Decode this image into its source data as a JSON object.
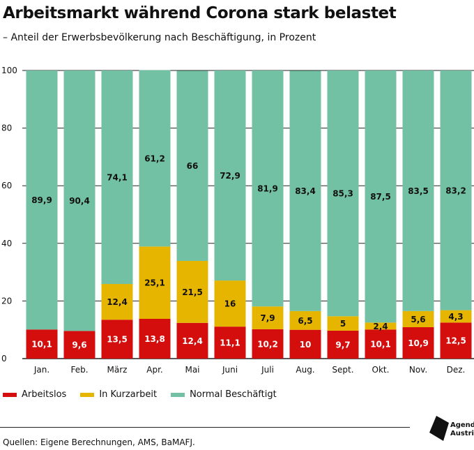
{
  "header": {
    "title": "Arbeitsmarkt während Corona stark belastet",
    "subtitle": "– Anteil der Erwerbsbevölkerung nach Beschäftigung, in Prozent"
  },
  "colors": {
    "arbeitslos": "#d40d0d",
    "kurzarbeit": "#e6b500",
    "normal": "#72c1a4",
    "grid": "#222222"
  },
  "chart_data": {
    "type": "bar",
    "stacked": true,
    "categories": [
      "Jan.",
      "Feb.",
      "März",
      "Apr.",
      "Mai",
      "Juni",
      "Juli",
      "Aug.",
      "Sept.",
      "Okt.",
      "Nov.",
      "Dez."
    ],
    "series": [
      {
        "name": "Arbeitslos",
        "values": [
          10.1,
          9.6,
          13.5,
          13.8,
          12.4,
          11.1,
          10.2,
          10,
          9.7,
          10.1,
          10.9,
          12.5
        ],
        "labels": [
          "10,1",
          "9,6",
          "13,5",
          "13,8",
          "12,4",
          "11,1",
          "10,2",
          "10",
          "9,7",
          "10,1",
          "10,9",
          "12,5"
        ]
      },
      {
        "name": "In Kurzarbeit",
        "values": [
          0,
          0,
          12.4,
          25.1,
          21.5,
          16,
          7.9,
          6.5,
          5,
          2.4,
          5.6,
          4.3
        ],
        "labels": [
          "",
          "",
          "12,4",
          "25,1",
          "21,5",
          "16",
          "7,9",
          "6,5",
          "5",
          "2,4",
          "5,6",
          "4,3"
        ]
      },
      {
        "name": "Normal Beschäftigt",
        "values": [
          89.9,
          90.4,
          74.1,
          61.2,
          66,
          72.9,
          81.9,
          83.4,
          85.3,
          87.5,
          83.5,
          83.2
        ],
        "labels": [
          "89,9",
          "90,4",
          "74,1",
          "61,2",
          "66",
          "72,9",
          "81,9",
          "83,4",
          "85,3",
          "87,5",
          "83,5",
          "83,2"
        ]
      }
    ],
    "ylim": [
      0,
      100
    ],
    "yticks": [
      "0",
      "20",
      "40",
      "60",
      "80",
      "100"
    ],
    "grid": true,
    "legend_position": "bottom-left"
  },
  "legend": {
    "items": [
      {
        "label": "Arbeitslos"
      },
      {
        "label": "In Kurzarbeit"
      },
      {
        "label": "Normal Beschäftigt"
      }
    ]
  },
  "footer": {
    "source": "Quellen: Eigene Berechnungen, AMS, BaMAFJ.",
    "logo_line1": "Agenda",
    "logo_line2": "Austria"
  }
}
